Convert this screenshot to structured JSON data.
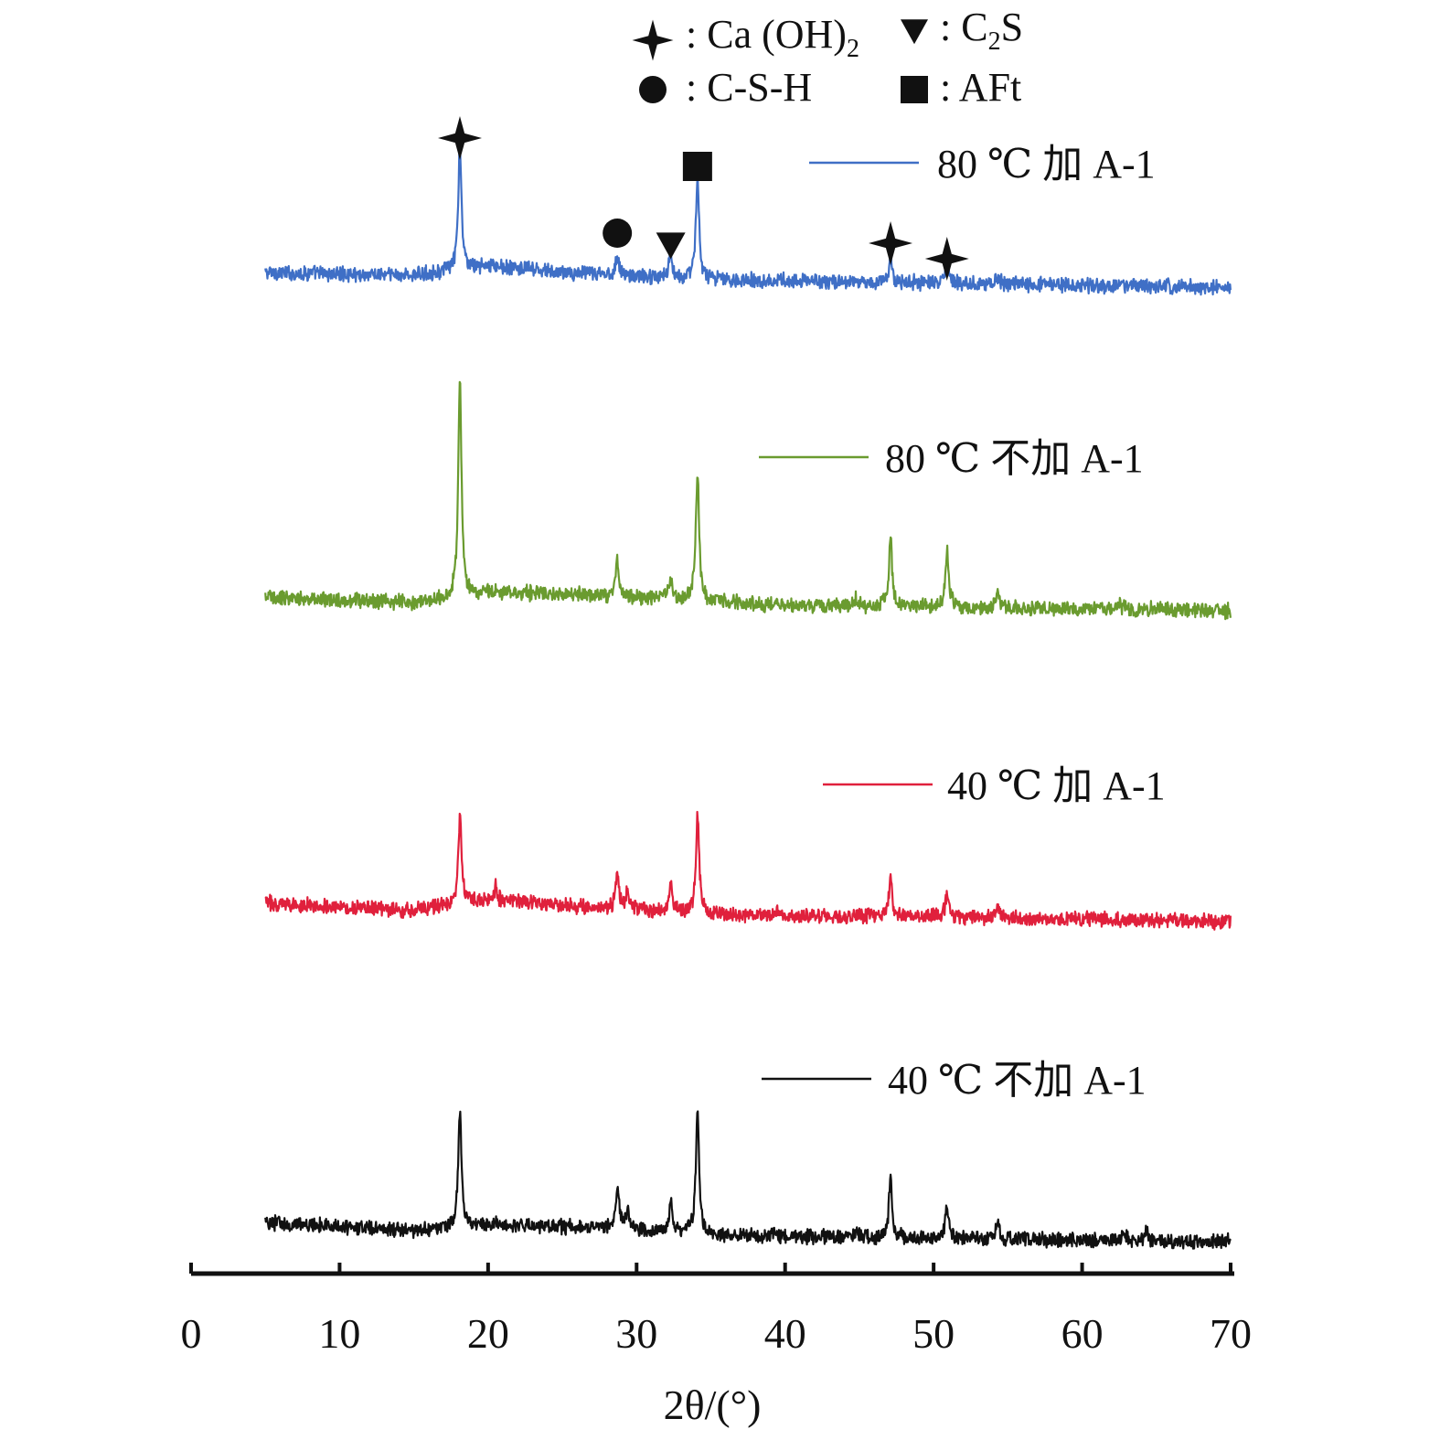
{
  "chart_data": {
    "type": "line",
    "xlabel": "2θ/(°)",
    "xlim": [
      0,
      70
    ],
    "x_ticks": [
      "0",
      "10",
      "20",
      "30",
      "40",
      "50",
      "60",
      "70"
    ],
    "y_axis_shown": false,
    "grid": false,
    "note_intensity": "arbitrary units; patterns vertically offset (stacked)",
    "phase_key": [
      {
        "symbol": "star",
        "label_prefix": ": Ca (OH)",
        "label_sub": "2",
        "label_suffix": ""
      },
      {
        "symbol": "triangle-down",
        "label_prefix": ": C",
        "label_sub": "2",
        "label_suffix": "S"
      },
      {
        "symbol": "circle",
        "label_prefix": ": C-S-H",
        "label_sub": "",
        "label_suffix": ""
      },
      {
        "symbol": "square",
        "label_prefix": ": AFt",
        "label_sub": "",
        "label_suffix": ""
      }
    ],
    "peak_markers": [
      {
        "symbol": "star",
        "x": 18.1
      },
      {
        "symbol": "circle",
        "x": 28.7
      },
      {
        "symbol": "triangle-down",
        "x": 32.3
      },
      {
        "symbol": "square",
        "x": 34.1
      },
      {
        "symbol": "star",
        "x": 47.1
      },
      {
        "symbol": "star",
        "x": 50.9
      }
    ],
    "series": [
      {
        "name": "80 ℃ 加 A-1",
        "color": "#3f6fc6",
        "x_range": [
          5,
          70
        ],
        "baseline": [
          [
            5,
            8
          ],
          [
            15,
            6
          ],
          [
            20,
            13
          ],
          [
            25,
            8
          ],
          [
            35,
            3
          ],
          [
            45,
            1
          ],
          [
            70,
            -3
          ]
        ],
        "peaks": [
          [
            18.1,
            90
          ],
          [
            28.7,
            15
          ],
          [
            32.3,
            18
          ],
          [
            34.1,
            75
          ],
          [
            47.1,
            18
          ],
          [
            50.9,
            15
          ],
          [
            54.3,
            6
          ]
        ]
      },
      {
        "name": "80 ℃ 不加 A-1",
        "color": "#6a9b2f",
        "x_range": [
          5,
          70
        ],
        "baseline": [
          [
            5,
            8
          ],
          [
            15,
            4
          ],
          [
            20,
            12
          ],
          [
            30,
            8
          ],
          [
            40,
            2
          ],
          [
            50,
            1
          ],
          [
            70,
            -2
          ]
        ],
        "peaks": [
          [
            18.1,
            160
          ],
          [
            28.7,
            28
          ],
          [
            32.3,
            15
          ],
          [
            34.1,
            95
          ],
          [
            44.8,
            5
          ],
          [
            47.1,
            50
          ],
          [
            50.9,
            42
          ],
          [
            54.3,
            10
          ],
          [
            62.5,
            5
          ]
        ]
      },
      {
        "name": "40 ℃ 加 A-1",
        "color": "#e0203c",
        "x_range": [
          5,
          70
        ],
        "baseline": [
          [
            5,
            12
          ],
          [
            15,
            6
          ],
          [
            20,
            14
          ],
          [
            25,
            10
          ],
          [
            35,
            3
          ],
          [
            45,
            2
          ],
          [
            70,
            -2
          ]
        ],
        "peaks": [
          [
            18.1,
            65
          ],
          [
            20.5,
            10
          ],
          [
            28.7,
            25
          ],
          [
            29.4,
            14
          ],
          [
            32.3,
            22
          ],
          [
            34.1,
            75
          ],
          [
            39.5,
            5
          ],
          [
            47.1,
            30
          ],
          [
            50.9,
            18
          ],
          [
            54.3,
            8
          ]
        ]
      },
      {
        "name": "40 ℃ 不加 A-1",
        "color": "#111111",
        "x_range": [
          5,
          70
        ],
        "baseline": [
          [
            5,
            14
          ],
          [
            15,
            8
          ],
          [
            20,
            13
          ],
          [
            28,
            10
          ],
          [
            35,
            5
          ],
          [
            45,
            3
          ],
          [
            70,
            0
          ]
        ],
        "peaks": [
          [
            18.1,
            85
          ],
          [
            28.7,
            32
          ],
          [
            29.4,
            16
          ],
          [
            32.3,
            22
          ],
          [
            34.1,
            90
          ],
          [
            44.8,
            5
          ],
          [
            47.1,
            45
          ],
          [
            50.9,
            25
          ],
          [
            54.3,
            12
          ],
          [
            62.8,
            8
          ],
          [
            64.3,
            8
          ]
        ]
      }
    ]
  }
}
